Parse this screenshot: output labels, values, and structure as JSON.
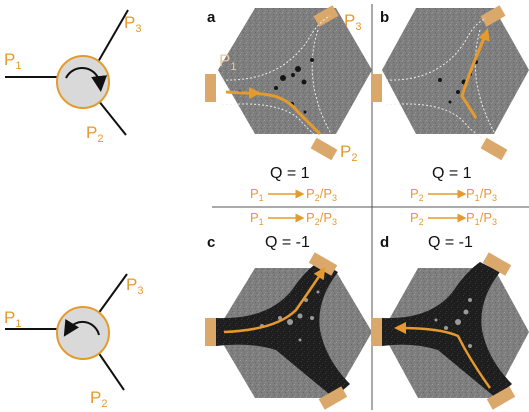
{
  "pump_top": {
    "p1": "P",
    "p1_sub": "1",
    "p2": "P",
    "p2_sub": "2",
    "p3": "P",
    "p3_sub": "3",
    "rotation": "clockwise"
  },
  "pump_bottom": {
    "p1": "P",
    "p1_sub": "1",
    "p2": "P",
    "p2_sub": "2",
    "p3": "P",
    "p3_sub": "3",
    "rotation": "counterclockwise"
  },
  "panels": {
    "a": {
      "letter": "a",
      "q": "Q = 1",
      "flow_from": "P",
      "flow_from_sub": "1",
      "flow_to_a": "P",
      "flow_to_a_sub": "2",
      "flow_to_b": "P",
      "flow_to_b_sub": "3",
      "port_p1": "P",
      "port_p1_sub": "1",
      "port_p2": "P",
      "port_p2_sub": "2",
      "port_p3": "P",
      "port_p3_sub": "3"
    },
    "b": {
      "letter": "b",
      "q": "Q = 1",
      "flow_from": "P",
      "flow_from_sub": "2",
      "flow_to_a": "P",
      "flow_to_a_sub": "1",
      "flow_to_b": "P",
      "flow_to_b_sub": "3"
    },
    "c": {
      "letter": "c",
      "q": "Q = -1",
      "flow_from": "P",
      "flow_from_sub": "1",
      "flow_to_a": "P",
      "flow_to_a_sub": "2",
      "flow_to_b": "P",
      "flow_to_b_sub": "3"
    },
    "d": {
      "letter": "d",
      "q": "Q = -1",
      "flow_from": "P",
      "flow_from_sub": "2",
      "flow_to_a": "P",
      "flow_to_a_sub": "1",
      "flow_to_b": "P",
      "flow_to_b_sub": "3"
    }
  },
  "colors": {
    "accent": "#e59a2e",
    "hexagon": "#7b7b7b",
    "channel_dark": "#1c1c1c",
    "pad": "#dba86b"
  },
  "icons": {
    "rotation_top": "clockwise-arrow-icon",
    "rotation_bottom": "counterclockwise-arrow-icon"
  }
}
